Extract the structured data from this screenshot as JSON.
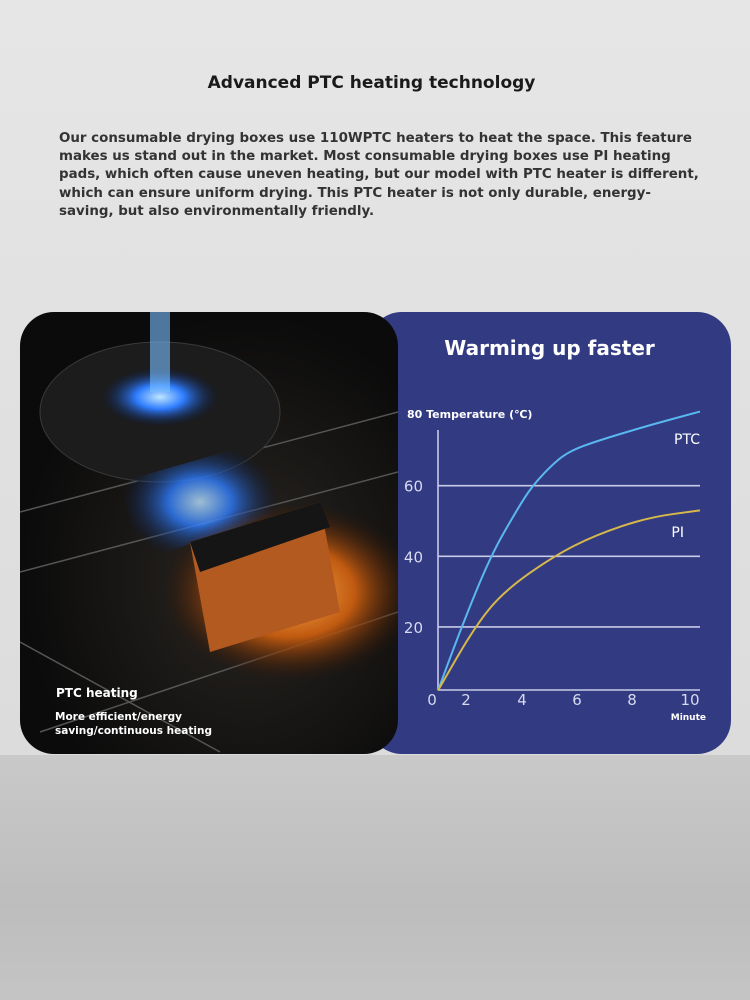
{
  "title": "Advanced PTC heating technology",
  "description": "Our consumable drying boxes use 110WPTC heaters to heat the space. This feature makes us stand out in the market. Most consumable drying boxes use PI heating pads, which often cause uneven heating, but our model with PTC heater is different, which can ensure uniform drying. This PTC heater is not only durable, energy-saving, but also environmentally friendly.",
  "photo": {
    "label": "PTC heating",
    "caption_line1": "More efficient/energy",
    "caption_line2": "saving/continuous heating"
  },
  "chart_data": {
    "type": "line",
    "title": "Warming up faster",
    "ylabel": "80 Temperature (℃)",
    "xlabel": "Minute",
    "xlim": [
      0,
      10
    ],
    "ylim": [
      0,
      80
    ],
    "xticks": [
      "0",
      "2",
      "4",
      "6",
      "8",
      "10"
    ],
    "yticks": [
      "20",
      "40",
      "60"
    ],
    "grid": true,
    "series": [
      {
        "name": "PTC",
        "color": "#5ab8f0",
        "points": [
          [
            0,
            2
          ],
          [
            0.9,
            20
          ],
          [
            2,
            40
          ],
          [
            3,
            53
          ],
          [
            3.6,
            60
          ],
          [
            4.5,
            67
          ],
          [
            5.1,
            70
          ],
          [
            6,
            72.5
          ],
          [
            8,
            77
          ],
          [
            10,
            81
          ]
        ]
      },
      {
        "name": "PI",
        "color": "#d6b84a",
        "points": [
          [
            0,
            2
          ],
          [
            1.4,
            20
          ],
          [
            2.5,
            30
          ],
          [
            4.4,
            40
          ],
          [
            6,
            46
          ],
          [
            8,
            51
          ],
          [
            10,
            53
          ]
        ]
      }
    ]
  }
}
